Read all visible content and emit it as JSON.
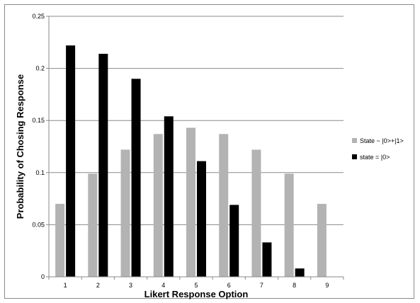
{
  "chart_data": {
    "type": "bar",
    "categories": [
      "1",
      "2",
      "3",
      "4",
      "5",
      "6",
      "7",
      "8",
      "9"
    ],
    "series": [
      {
        "name": "State ~ |0>+|1>",
        "color": "#b3b3b3",
        "values": [
          0.07,
          0.099,
          0.122,
          0.137,
          0.143,
          0.137,
          0.122,
          0.099,
          0.07
        ]
      },
      {
        "name": "state = |0>",
        "color": "#000000",
        "values": [
          0.222,
          0.214,
          0.19,
          0.154,
          0.111,
          0.069,
          0.033,
          0.008,
          0
        ]
      }
    ],
    "xlabel": "Likert Response Option",
    "ylabel": "Probability of Chosing Response",
    "ylim": [
      0,
      0.25
    ],
    "yticks": [
      "0",
      "0.05",
      "0.1",
      "0.15",
      "0.2",
      "0.25"
    ],
    "grid": true,
    "legend_position": "right"
  }
}
